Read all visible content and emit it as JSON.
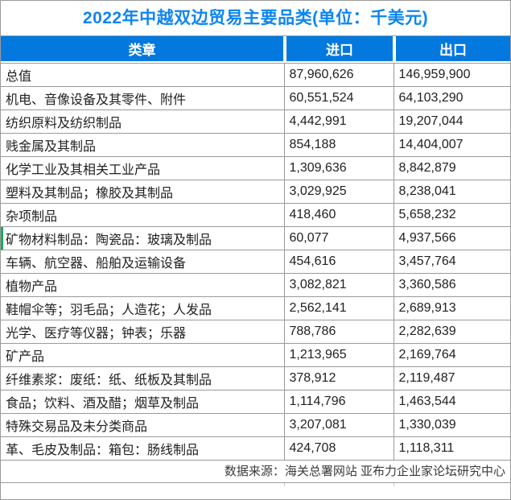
{
  "title": "2022年中越双边贸易主要品类(单位：千美元)",
  "colors": {
    "title_blue": "#0d85f2",
    "header_bg": "#0379e0",
    "border": "#9a9a9a",
    "marker_green": "#1aab58"
  },
  "table": {
    "columns": [
      "类章",
      "进口",
      "出口"
    ],
    "rows": [
      {
        "category": "总值",
        "import": "87,960,626",
        "export": "146,959,900"
      },
      {
        "category": "机电、音像设备及其零件、附件",
        "import": "60,551,524",
        "export": "64,103,290"
      },
      {
        "category": "纺织原料及纺织制品",
        "import": "4,442,991",
        "export": "19,207,044"
      },
      {
        "category": "贱金属及其制品",
        "import": "854,188",
        "export": "14,404,007"
      },
      {
        "category": "化学工业及其相关工业产品",
        "import": "1,309,636",
        "export": "8,842,879"
      },
      {
        "category": "塑料及其制品；橡胶及其制品",
        "import": "3,029,925",
        "export": "8,238,041"
      },
      {
        "category": "杂项制品",
        "import": "418,460",
        "export": "5,658,232"
      },
      {
        "category": "矿物材料制品：陶瓷品：玻璃及制品",
        "import": "60,077",
        "export": "4,937,566",
        "marker": true
      },
      {
        "category": "车辆、航空器、船舶及运输设备",
        "import": "454,616",
        "export": "3,457,764"
      },
      {
        "category": "植物产品",
        "import": "3,082,821",
        "export": "3,360,586"
      },
      {
        "category": "鞋帽伞等；羽毛品；人造花；人发品",
        "import": "2,562,141",
        "export": "2,689,913"
      },
      {
        "category": "光学、医疗等仪器；钟表；乐器",
        "import": "788,786",
        "export": "2,282,639"
      },
      {
        "category": "矿产品",
        "import": "1,213,965",
        "export": "2,169,764"
      },
      {
        "category": "纤维素浆：废纸：纸、纸板及其制品",
        "import": "378,912",
        "export": "2,119,487"
      },
      {
        "category": "食品；饮料、酒及醋；烟草及制品",
        "import": "1,114,796",
        "export": "1,463,544"
      },
      {
        "category": "特殊交易品及未分类商品",
        "import": "3,207,081",
        "export": "1,330,039"
      },
      {
        "category": "革、毛皮及制品：箱包：肠线制品",
        "import": "424,708",
        "export": "1,118,311"
      }
    ]
  },
  "footer": {
    "source": "数据来源：海关总署网站 亚布力企业家论坛研究中心"
  },
  "chart_data": {
    "type": "table",
    "title": "2022年中越双边贸易主要品类(单位：千美元)",
    "columns": [
      "类章",
      "进口",
      "出口"
    ],
    "unit": "千美元",
    "rows": [
      [
        "总值",
        87960626,
        146959900
      ],
      [
        "机电、音像设备及其零件、附件",
        60551524,
        64103290
      ],
      [
        "纺织原料及纺织制品",
        4442991,
        19207044
      ],
      [
        "贱金属及其制品",
        854188,
        14404007
      ],
      [
        "化学工业及其相关工业产品",
        1309636,
        8842879
      ],
      [
        "塑料及其制品；橡胶及其制品",
        3029925,
        8238041
      ],
      [
        "杂项制品",
        418460,
        5658232
      ],
      [
        "矿物材料制品：陶瓷品：玻璃及制品",
        60077,
        4937566
      ],
      [
        "车辆、航空器、船舶及运输设备",
        454616,
        3457764
      ],
      [
        "植物产品",
        3082821,
        3360586
      ],
      [
        "鞋帽伞等；羽毛品；人造花；人发品",
        2562141,
        2689913
      ],
      [
        "光学、医疗等仪器；钟表；乐器",
        788786,
        2282639
      ],
      [
        "矿产品",
        1213965,
        2169764
      ],
      [
        "纤维素浆：废纸：纸、纸板及其制品",
        378912,
        2119487
      ],
      [
        "食品；饮料、酒及醋；烟草及制品",
        1114796,
        1463544
      ],
      [
        "特殊交易品及未分类商品",
        3207081,
        1330039
      ],
      [
        "革、毛皮及制品：箱包：肠线制品",
        424708,
        1118311
      ]
    ],
    "source": "数据来源：海关总署网站 亚布力企业家论坛研究中心"
  }
}
